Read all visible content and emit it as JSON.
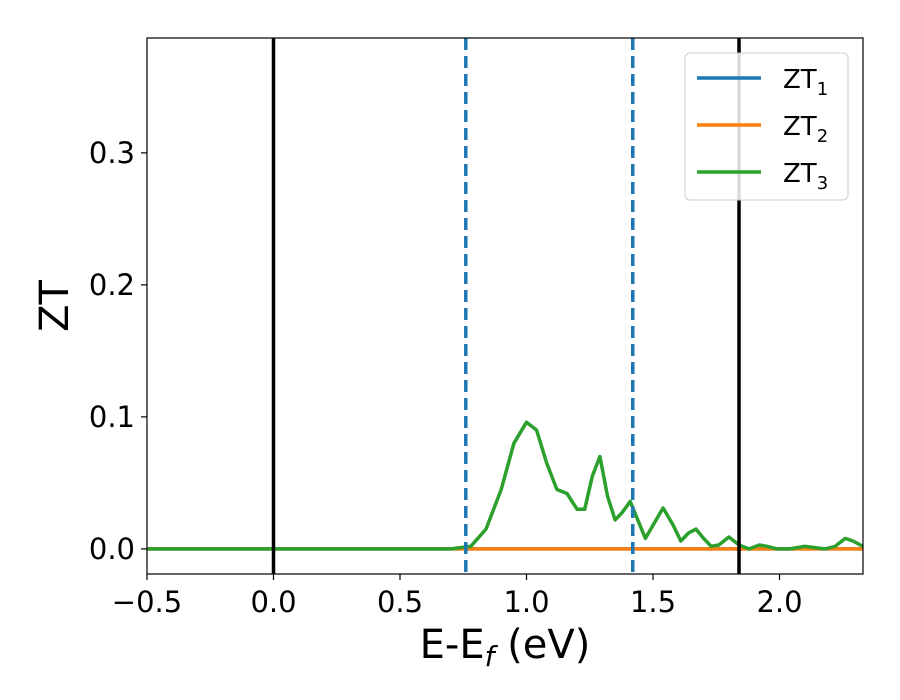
{
  "chart_data": {
    "type": "line",
    "title": "",
    "xlabel": "E-E",
    "xlabel_sub": "f",
    "xlabel_unit": " (eV)",
    "ylabel": "ZT",
    "xlim": [
      -0.5,
      2.33
    ],
    "ylim": [
      -0.019,
      0.387
    ],
    "x_ticks": [
      -0.5,
      0.0,
      0.5,
      1.0,
      1.5,
      2.0
    ],
    "x_tick_labels": [
      "−0.5",
      "0.0",
      "0.5",
      "1.0",
      "1.5",
      "2.0"
    ],
    "y_ticks": [
      0.0,
      0.1,
      0.2,
      0.3
    ],
    "y_tick_labels": [
      "0.0",
      "0.1",
      "0.2",
      "0.3"
    ],
    "grid": false,
    "legend_placement": "top-right",
    "vertical_lines": [
      {
        "x": 0.0,
        "style": "solid",
        "color": "#000000"
      },
      {
        "x": 0.76,
        "style": "dashed",
        "color": "#1f77b4"
      },
      {
        "x": 1.42,
        "style": "dashed",
        "color": "#1f77b4"
      },
      {
        "x": 1.84,
        "style": "solid",
        "color": "#000000"
      }
    ],
    "series": [
      {
        "name": "ZT",
        "name_sub": "1",
        "color": "#1f77b4",
        "x": [
          -0.5,
          2.33
        ],
        "y": [
          0.0,
          0.0
        ]
      },
      {
        "name": "ZT",
        "name_sub": "2",
        "color": "#ff7f0e",
        "x": [
          -0.5,
          2.33
        ],
        "y": [
          0.0,
          0.0
        ]
      },
      {
        "name": "ZT",
        "name_sub": "3",
        "color": "#2ca02c",
        "x": [
          -0.5,
          0.7,
          0.78,
          0.84,
          0.9,
          0.95,
          1.0,
          1.04,
          1.08,
          1.12,
          1.16,
          1.2,
          1.23,
          1.26,
          1.29,
          1.32,
          1.35,
          1.38,
          1.41,
          1.44,
          1.47,
          1.5,
          1.54,
          1.58,
          1.61,
          1.64,
          1.67,
          1.7,
          1.73,
          1.76,
          1.8,
          1.84,
          1.88,
          1.92,
          1.95,
          1.99,
          2.04,
          2.1,
          2.14,
          2.18,
          2.22,
          2.26,
          2.29,
          2.33
        ],
        "y": [
          0.0,
          0.0,
          0.002,
          0.015,
          0.045,
          0.08,
          0.096,
          0.09,
          0.065,
          0.045,
          0.042,
          0.03,
          0.03,
          0.055,
          0.07,
          0.04,
          0.022,
          0.028,
          0.036,
          0.022,
          0.008,
          0.018,
          0.031,
          0.018,
          0.006,
          0.012,
          0.015,
          0.008,
          0.002,
          0.003,
          0.009,
          0.003,
          0.0,
          0.003,
          0.002,
          0.0,
          0.0,
          0.002,
          0.001,
          0.0,
          0.002,
          0.008,
          0.006,
          0.002
        ]
      }
    ]
  }
}
